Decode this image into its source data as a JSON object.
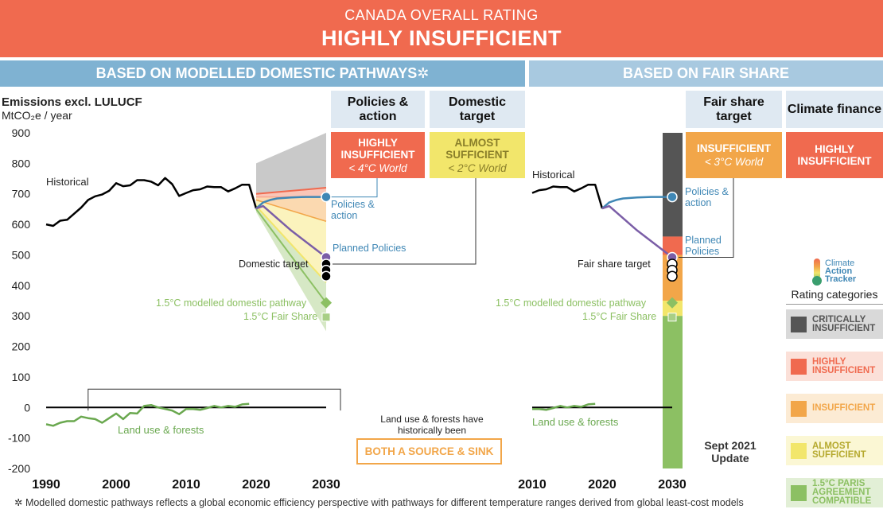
{
  "header": {
    "subtitle": "CANADA OVERALL RATING",
    "title": "HIGHLY INSUFFICIENT"
  },
  "sections": {
    "left": "BASED ON MODELLED DOMESTIC PATHWAYS✲",
    "right": "BASED ON FAIR SHARE"
  },
  "columns": [
    {
      "title": "Policies & action",
      "rating": "HIGHLY INSUFFICIENT",
      "world": "< 4°C World",
      "color": "#f06a4f"
    },
    {
      "title": "Domestic target",
      "rating": "ALMOST SUFFICIENT",
      "world": "< 2°C World",
      "color": "#f2e66b"
    },
    {
      "title": "Fair share target",
      "rating": "INSUFFICIENT",
      "world": "< 3°C World",
      "color": "#f2a649"
    },
    {
      "title": "Climate finance",
      "rating": "HIGHLY INSUFFICIENT",
      "world": "",
      "color": "#f06a4f"
    }
  ],
  "yaxis": {
    "title": "Emissions excl. LULUCF",
    "unit": "MtCO₂e / year"
  },
  "labels": {
    "historical": "Historical",
    "policies": "Policies & action",
    "planned": "Planned Policies",
    "domestic_target": "Domestic target",
    "fair_share_target": "Fair share target",
    "modelled_15": "1.5°C modelled domestic pathway",
    "fair_share_15": "1.5°C Fair Share",
    "land_use": "Land use & forests",
    "land_use_note": "Land use & forests have historically been",
    "source_sink": "BOTH A SOURCE & SINK",
    "update": "Sept 2021 Update",
    "footnote": "✲ Modelled domestic pathways reflects a global economic efficiency perspective with pathways for different temperature ranges derived from global least-cost models"
  },
  "logo": {
    "line1": "Climate",
    "line2": "Action",
    "line3": "Tracker"
  },
  "legend": {
    "title": "Rating categories",
    "items": [
      {
        "label": "CRITICALLY INSUFFICIENT",
        "color": "#555555",
        "bg": "#d9d9d9"
      },
      {
        "label": "HIGHLY INSUFFICIENT",
        "color": "#f06a4f",
        "bg": "#fbe0d8"
      },
      {
        "label": "INSUFFICIENT",
        "color": "#f2a649",
        "bg": "#fcebd4"
      },
      {
        "label": "ALMOST SUFFICIENT",
        "color": "#f2e66b",
        "bg": "#fbf7d4"
      },
      {
        "label": "1.5°C PARIS AGREEMENT COMPATIBLE",
        "color": "#8cc063",
        "bg": "#e2efd6"
      }
    ]
  },
  "chart_data": [
    {
      "type": "line",
      "title": "",
      "ylabel": "Emissions excl. LULUCF (MtCO₂e / year)",
      "xlim": [
        1990,
        2030
      ],
      "ylim": [
        -200,
        900
      ],
      "xticks": [
        "1990",
        "2000",
        "2010",
        "2020",
        "2030"
      ],
      "yticks": [
        "900",
        "800",
        "700",
        "600",
        "500",
        "400",
        "300",
        "200",
        "100",
        "0",
        "-100",
        "-200"
      ],
      "series": [
        {
          "name": "Historical",
          "color": "#000000",
          "x": [
            1990,
            1991,
            1992,
            1993,
            1994,
            1995,
            1996,
            1997,
            1998,
            1999,
            2000,
            2001,
            2002,
            2003,
            2004,
            2005,
            2006,
            2007,
            2008,
            2009,
            2010,
            2011,
            2012,
            2013,
            2014,
            2015,
            2016,
            2017,
            2018,
            2019,
            2020
          ],
          "y": [
            600,
            595,
            612,
            615,
            635,
            655,
            680,
            692,
            698,
            710,
            735,
            725,
            728,
            745,
            745,
            740,
            728,
            752,
            732,
            693,
            703,
            712,
            715,
            724,
            722,
            722,
            708,
            718,
            730,
            730,
            652
          ]
        },
        {
          "name": "Land use & forests",
          "color": "#6aa84f",
          "x": [
            1990,
            1991,
            1992,
            1993,
            1994,
            1995,
            1996,
            1997,
            1998,
            1999,
            2000,
            2001,
            2002,
            2003,
            2004,
            2005,
            2006,
            2007,
            2008,
            2009,
            2010,
            2011,
            2012,
            2013,
            2014,
            2015,
            2016,
            2017,
            2018,
            2019
          ],
          "y": [
            -55,
            -60,
            -50,
            -45,
            -45,
            -30,
            -35,
            -38,
            -50,
            -35,
            -20,
            -38,
            -18,
            -20,
            5,
            8,
            0,
            -5,
            -10,
            -22,
            -5,
            -5,
            -8,
            -2,
            5,
            0,
            5,
            2,
            10,
            12
          ]
        },
        {
          "name": "Policies & action",
          "color": "#3f87b5",
          "x": [
            2020,
            2021,
            2022,
            2023,
            2025,
            2027,
            2030
          ],
          "y": [
            652,
            672,
            680,
            685,
            688,
            690,
            690
          ]
        },
        {
          "name": "Planned Policies",
          "color": "#7b5ea7",
          "x": [
            2020,
            2021,
            2025,
            2030
          ],
          "y": [
            652,
            660,
            580,
            492
          ]
        }
      ],
      "ranges_2030": {
        "critically_insufficient": [
          720,
          900
        ],
        "highly_insufficient": [
          690,
          720
        ],
        "insufficient": [
          610,
          690
        ],
        "almost_sufficient": [
          410,
          610
        ],
        "paris_compatible": [
          250,
          410
        ]
      },
      "points_2030": {
        "policies": 690,
        "planned": 492,
        "domestic_target": [
          470,
          450,
          430
        ],
        "modelled_15": 343,
        "fair_share_15": 296
      }
    },
    {
      "type": "line",
      "title": "Based on fair share",
      "xlim": [
        2010,
        2030
      ],
      "ylim": [
        -200,
        900
      ],
      "xticks": [
        "2010",
        "2020",
        "2030"
      ],
      "series": [
        {
          "name": "Historical",
          "color": "#000000",
          "x": [
            2010,
            2011,
            2012,
            2013,
            2014,
            2015,
            2016,
            2017,
            2018,
            2019,
            2020
          ],
          "y": [
            703,
            712,
            715,
            724,
            722,
            722,
            708,
            718,
            730,
            730,
            652
          ]
        },
        {
          "name": "Land use & forests",
          "color": "#6aa84f",
          "x": [
            2010,
            2011,
            2012,
            2013,
            2014,
            2015,
            2016,
            2017,
            2018,
            2019
          ],
          "y": [
            -5,
            -5,
            -8,
            -2,
            5,
            0,
            5,
            2,
            10,
            12
          ]
        },
        {
          "name": "Policies & action",
          "color": "#3f87b5",
          "x": [
            2020,
            2021,
            2022,
            2023,
            2025,
            2027,
            2030
          ],
          "y": [
            652,
            672,
            680,
            685,
            688,
            690,
            690
          ]
        },
        {
          "name": "Planned Policies",
          "color": "#7b5ea7",
          "x": [
            2020,
            2021,
            2025,
            2030
          ],
          "y": [
            652,
            660,
            580,
            492
          ]
        }
      ],
      "fair_share_bar_2030": {
        "critically_insufficient": [
          560,
          900
        ],
        "highly_insufficient": [
          500,
          560
        ],
        "insufficient": [
          350,
          500
        ],
        "almost_sufficient": [
          300,
          350
        ],
        "paris_compatible": [
          -200,
          300
        ]
      },
      "points_2030": {
        "policies": 690,
        "planned": 492,
        "fair_share_target": [
          470,
          450,
          430
        ],
        "modelled_15": 343,
        "fair_share_15": 296
      }
    }
  ]
}
